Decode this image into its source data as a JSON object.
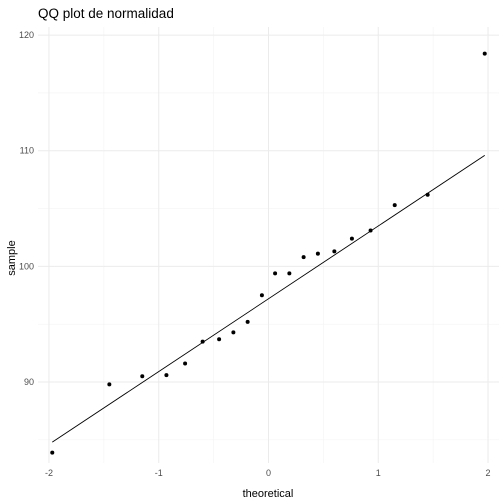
{
  "chart_data": {
    "type": "scatter",
    "title": "QQ plot de normalidad",
    "xlabel": "theoretical",
    "ylabel": "sample",
    "xlim": [
      -2.1,
      2.1
    ],
    "ylim": [
      83.0,
      120.7
    ],
    "xticks": [
      -2,
      -1,
      0,
      1,
      2
    ],
    "xtick_labels": [
      "-2",
      "-1",
      "0",
      "1",
      "2"
    ],
    "yticks": [
      90,
      100,
      110,
      120
    ],
    "ytick_labels": [
      "90",
      "100",
      "110",
      "120"
    ],
    "grid": true,
    "legend": "none",
    "point_color": "#000000",
    "line_color": "#000000",
    "points": [
      {
        "x": -1.97,
        "y": 83.9
      },
      {
        "x": -1.45,
        "y": 89.8
      },
      {
        "x": -1.15,
        "y": 90.5
      },
      {
        "x": -0.93,
        "y": 90.6
      },
      {
        "x": -0.76,
        "y": 91.6
      },
      {
        "x": -0.6,
        "y": 93.5
      },
      {
        "x": -0.45,
        "y": 93.7
      },
      {
        "x": -0.32,
        "y": 94.3
      },
      {
        "x": -0.19,
        "y": 95.2
      },
      {
        "x": -0.06,
        "y": 97.5
      },
      {
        "x": 0.06,
        "y": 99.4
      },
      {
        "x": 0.19,
        "y": 99.4
      },
      {
        "x": 0.32,
        "y": 100.8
      },
      {
        "x": 0.45,
        "y": 101.1
      },
      {
        "x": 0.6,
        "y": 101.3
      },
      {
        "x": 0.76,
        "y": 102.4
      },
      {
        "x": 0.93,
        "y": 103.1
      },
      {
        "x": 1.15,
        "y": 105.3
      },
      {
        "x": 1.45,
        "y": 106.2
      },
      {
        "x": 1.97,
        "y": 118.4
      }
    ],
    "reference_line": {
      "x": [
        -1.97,
        1.97
      ],
      "y": [
        84.8,
        109.6
      ]
    }
  }
}
